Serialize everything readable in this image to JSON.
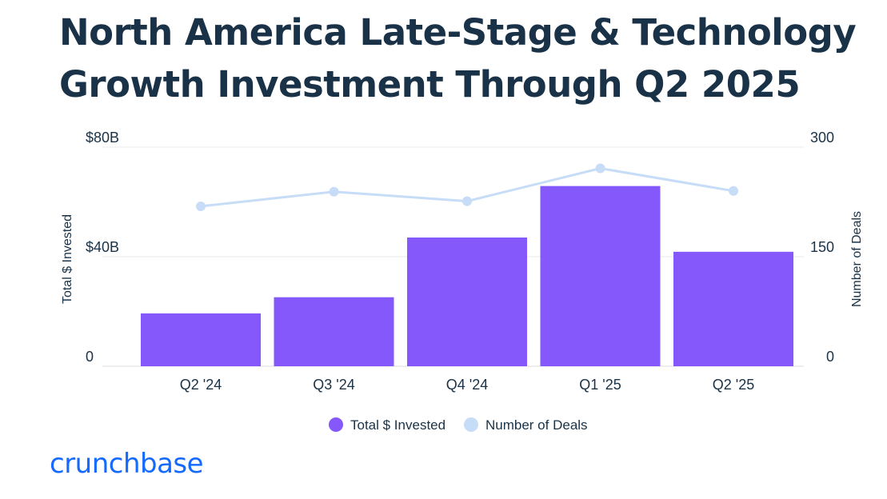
{
  "chart_data": {
    "type": "bar",
    "title": "North America Late-Stage & Technology Growth Investment Through Q2 2025",
    "categories": [
      "Q2 '24",
      "Q3 '24",
      "Q4 '24",
      "Q1 '25",
      "Q2 '25"
    ],
    "series": [
      {
        "name": "Total $ Invested",
        "type": "bar",
        "axis": "left",
        "color": "#8458fa",
        "values": [
          19.3,
          25.2,
          47.0,
          65.8,
          41.8
        ]
      },
      {
        "name": "Number of Deals",
        "type": "line",
        "axis": "right",
        "color": "#c6dcf7",
        "values": [
          219,
          239,
          226,
          271,
          240
        ]
      }
    ],
    "y_left": {
      "label": "Total $ Invested",
      "range": [
        0,
        80
      ],
      "ticks": [
        0,
        40,
        80
      ],
      "tick_labels": [
        "0",
        "$40B",
        "$80B"
      ]
    },
    "y_right": {
      "label": "Number of Deals",
      "range": [
        0,
        300
      ],
      "ticks": [
        0,
        150,
        300
      ],
      "tick_labels": [
        "0",
        "150",
        "300"
      ]
    },
    "grid": true,
    "legend": "bottom-center"
  },
  "brand": {
    "logo_text": "crunchbase",
    "color": "#146aff"
  }
}
